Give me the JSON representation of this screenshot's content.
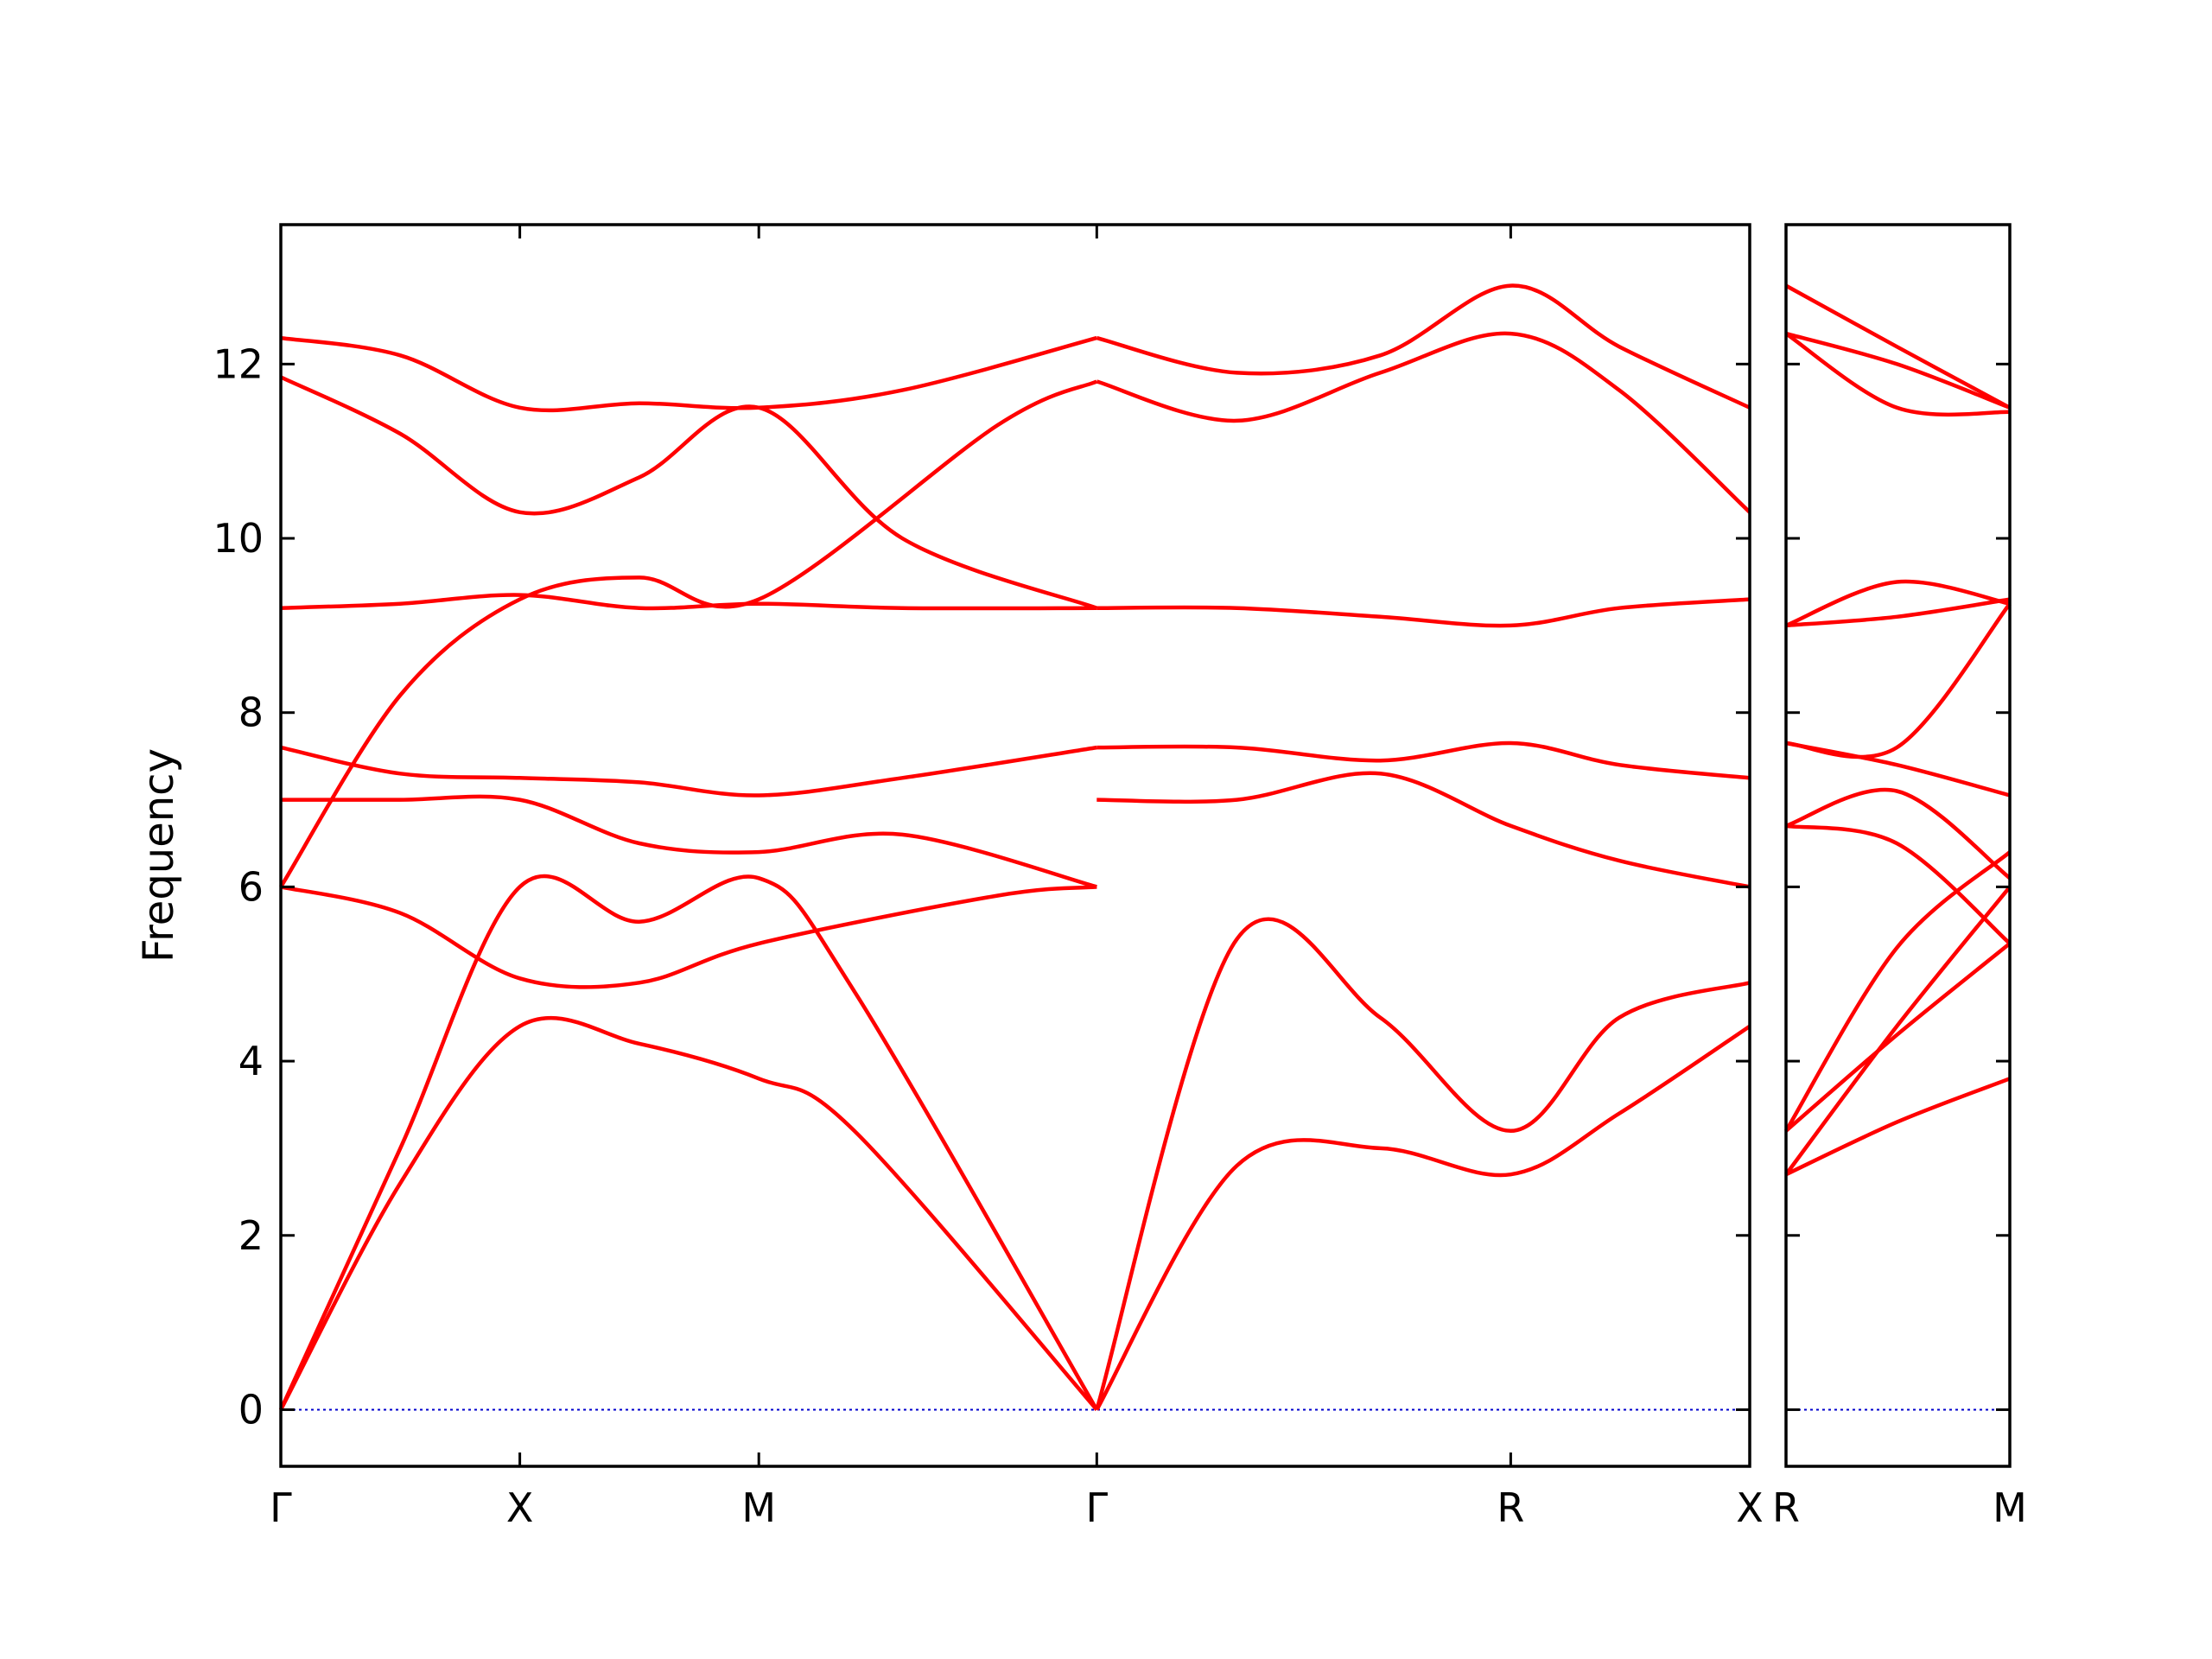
{
  "chart_data": {
    "type": "line",
    "ylabel": "Frequency",
    "ylim": [
      -0.65,
      13.6
    ],
    "yticks": [
      0,
      2,
      4,
      6,
      8,
      10,
      12
    ],
    "line_color": "#ff0000",
    "zero_line_color": "#0000cc",
    "panels": [
      {
        "kpoints": [
          "Γ",
          "X",
          "M",
          "Γ",
          "R",
          "X"
        ],
        "kpositions": [
          0,
          0.5,
          1.0,
          1.707,
          2.573,
          3.073
        ],
        "xlim": [
          0,
          3.073
        ],
        "bands": [
          {
            "x": [
              0,
              0.25,
              0.5,
              0.75,
              1.0,
              1.2,
              1.707
            ],
            "y": [
              0,
              2.6,
              4.4,
              4.2,
              3.8,
              3.2,
              0
            ]
          },
          {
            "x": [
              0,
              0.25,
              0.5,
              0.75,
              1.0,
              1.2,
              1.707
            ],
            "y": [
              0,
              3.0,
              6.0,
              5.6,
              6.1,
              4.8,
              0
            ]
          },
          {
            "x": [
              1.707,
              2.0,
              2.3,
              2.573,
              2.8,
              3.073
            ],
            "y": [
              0,
              2.8,
              3.0,
              2.7,
              3.4,
              4.4
            ]
          },
          {
            "x": [
              1.707,
              2.0,
              2.3,
              2.573,
              2.8,
              3.073
            ],
            "y": [
              0,
              5.4,
              4.5,
              3.2,
              4.5,
              4.9
            ]
          },
          {
            "x": [
              0,
              0.25,
              0.5,
              0.75,
              1.0,
              1.5,
              1.707
            ],
            "y": [
              6.0,
              5.7,
              4.95,
              4.9,
              5.35,
              5.9,
              6.0
            ]
          },
          {
            "x": [
              0,
              0.25,
              0.5,
              0.75,
              1.0,
              1.5,
              1.707
            ],
            "y": [
              6.0,
              8.2,
              9.3,
              9.55,
              9.3,
              11.3,
              11.8
            ]
          },
          {
            "x": [
              0,
              0.25,
              0.5,
              0.75,
              1.0,
              1.3,
              1.707
            ],
            "y": [
              7.0,
              7.0,
              7.0,
              6.5,
              6.4,
              6.6,
              6.0
            ]
          },
          {
            "x": [
              0,
              0.25,
              0.5,
              0.75,
              1.0,
              1.3,
              1.707
            ],
            "y": [
              7.6,
              7.3,
              7.25,
              7.2,
              7.05,
              7.25,
              7.6
            ]
          },
          {
            "x": [
              0,
              0.25,
              0.5,
              0.75,
              1.0,
              1.3,
              1.707
            ],
            "y": [
              9.2,
              9.25,
              9.35,
              9.2,
              9.25,
              9.2,
              9.2
            ]
          },
          {
            "x": [
              0,
              0.25,
              0.5,
              0.75,
              1.0,
              1.3,
              1.707
            ],
            "y": [
              11.85,
              11.2,
              10.3,
              10.7,
              11.5,
              10.0,
              9.2
            ]
          },
          {
            "x": [
              0,
              0.25,
              0.5,
              0.75,
              1.0,
              1.3,
              1.707
            ],
            "y": [
              12.3,
              12.1,
              11.5,
              11.55,
              11.5,
              11.7,
              12.3
            ]
          },
          {
            "x": [
              1.707,
              2.0,
              2.3,
              2.573,
              2.8,
              3.073
            ],
            "y": [
              7.0,
              7.0,
              7.3,
              6.7,
              6.3,
              6.0
            ]
          },
          {
            "x": [
              1.707,
              2.0,
              2.3,
              2.573,
              2.8,
              3.073
            ],
            "y": [
              7.6,
              7.6,
              7.45,
              7.65,
              7.4,
              7.25
            ]
          },
          {
            "x": [
              1.707,
              2.0,
              2.3,
              2.573,
              2.8,
              3.073
            ],
            "y": [
              9.2,
              9.2,
              9.1,
              9.0,
              9.2,
              9.3
            ]
          },
          {
            "x": [
              1.707,
              2.0,
              2.3,
              2.573,
              2.8,
              3.073
            ],
            "y": [
              12.3,
              11.9,
              12.1,
              12.9,
              12.2,
              11.5
            ]
          },
          {
            "x": [
              1.707,
              2.0,
              2.3,
              2.573,
              2.8,
              3.073
            ],
            "y": [
              11.8,
              11.35,
              11.9,
              12.35,
              11.7,
              10.3
            ]
          }
        ]
      },
      {
        "kpoints": [
          "R",
          "M"
        ],
        "kpositions": [
          0,
          0.707
        ],
        "xlim": [
          0,
          0.707
        ],
        "bands": [
          {
            "x": [
              0,
              0.35,
              0.707
            ],
            "y": [
              2.7,
              3.3,
              3.8
            ]
          },
          {
            "x": [
              0,
              0.35,
              0.707
            ],
            "y": [
              2.7,
              4.4,
              6.0
            ]
          },
          {
            "x": [
              0,
              0.35,
              0.707
            ],
            "y": [
              3.2,
              4.3,
              5.35
            ]
          },
          {
            "x": [
              0,
              0.35,
              0.707
            ],
            "y": [
              3.2,
              5.3,
              6.4
            ]
          },
          {
            "x": [
              0,
              0.35,
              0.707
            ],
            "y": [
              6.7,
              6.5,
              5.35
            ]
          },
          {
            "x": [
              0,
              0.35,
              0.707
            ],
            "y": [
              6.7,
              7.1,
              6.1
            ]
          },
          {
            "x": [
              0,
              0.35,
              0.707
            ],
            "y": [
              7.65,
              7.4,
              7.05
            ]
          },
          {
            "x": [
              0,
              0.35,
              0.707
            ],
            "y": [
              7.65,
              7.6,
              9.25
            ]
          },
          {
            "x": [
              0,
              0.35,
              0.707
            ],
            "y": [
              9.0,
              9.1,
              9.3
            ]
          },
          {
            "x": [
              0,
              0.35,
              0.707
            ],
            "y": [
              9.0,
              9.5,
              9.25
            ]
          },
          {
            "x": [
              0,
              0.35,
              0.707
            ],
            "y": [
              12.35,
              11.5,
              11.45
            ]
          },
          {
            "x": [
              0,
              0.35,
              0.707
            ],
            "y": [
              12.35,
              12.0,
              11.5
            ]
          },
          {
            "x": [
              0,
              0.35,
              0.707
            ],
            "y": [
              12.9,
              12.2,
              11.5
            ]
          }
        ]
      }
    ]
  }
}
